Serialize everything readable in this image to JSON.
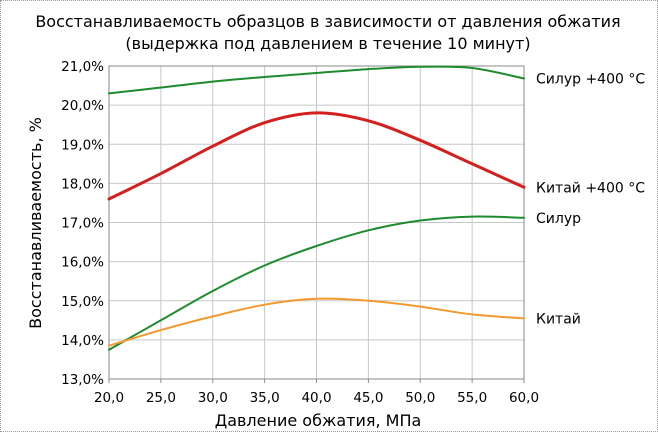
{
  "chart_data": {
    "type": "line",
    "title": "Восстанавливаемость образцов в зависимости от давления обжатия",
    "subtitle": "(выдержка под давлением в течение 10 минут)",
    "xlabel": "Давление обжатия, МПа",
    "ylabel": "Восстанавливаемость, %",
    "xlim": [
      20,
      60
    ],
    "ylim": [
      13,
      21
    ],
    "x_ticks": [
      "20,0",
      "25,0",
      "30,0",
      "35,0",
      "40,0",
      "45,0",
      "50,0",
      "55,0",
      "60,0"
    ],
    "y_ticks": [
      "13,0%",
      "14,0%",
      "15,0%",
      "16,0%",
      "17,0%",
      "18,0%",
      "19,0%",
      "20,0%",
      "21,0%"
    ],
    "grid": true,
    "legend": "none (series labeled at line ends)",
    "series": [
      {
        "name": "Силур +400 °C",
        "color": "#1e8c2e",
        "x": [
          20,
          25,
          30,
          35,
          40,
          45,
          50,
          55,
          60
        ],
        "y": [
          20.3,
          20.45,
          20.6,
          20.72,
          20.82,
          20.92,
          20.98,
          20.95,
          20.68
        ]
      },
      {
        "name": "Китай +400 °C",
        "color": "#d41f1f",
        "x": [
          20,
          25,
          30,
          35,
          40,
          45,
          50,
          55,
          60
        ],
        "y": [
          17.6,
          18.25,
          18.95,
          19.55,
          19.8,
          19.6,
          19.1,
          18.5,
          17.9
        ]
      },
      {
        "name": "Силур",
        "color": "#1e8c2e",
        "x": [
          20,
          25,
          30,
          35,
          40,
          45,
          50,
          55,
          60
        ],
        "y": [
          13.75,
          14.5,
          15.25,
          15.9,
          16.4,
          16.8,
          17.05,
          17.15,
          17.12
        ]
      },
      {
        "name": "Китай",
        "color": "#f29a2e",
        "x": [
          20,
          25,
          30,
          35,
          40,
          45,
          50,
          55,
          60
        ],
        "y": [
          13.85,
          14.25,
          14.6,
          14.9,
          15.05,
          15.0,
          14.85,
          14.65,
          14.55
        ]
      }
    ]
  }
}
